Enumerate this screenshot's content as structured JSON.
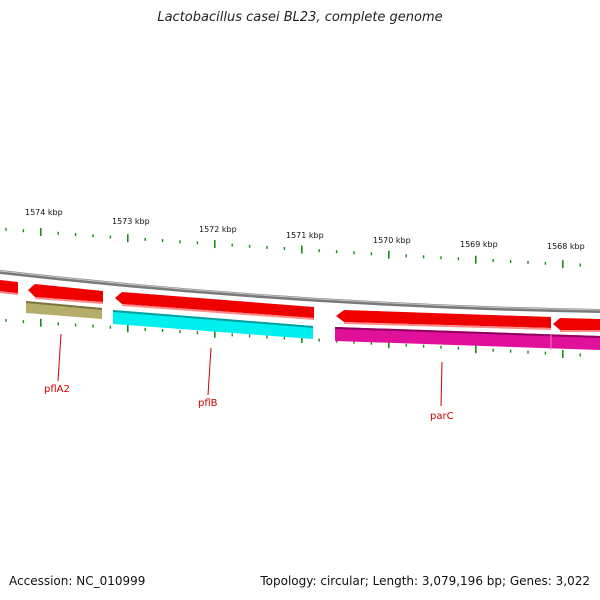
{
  "title": "Lactobacillus casei BL23, complete genome",
  "footer": {
    "accession": "Accession: NC_010999",
    "summary": "Topology: circular; Length: 3,079,196 bp; Genes: 3,022"
  },
  "colors": {
    "backbone": "#808080",
    "forward_gene": "#ee0000",
    "pfla2": "#b5ad6a",
    "pflb": "#00f0f0",
    "parc": "#e0109a",
    "ticks": "#1a8a1a",
    "label": "#cc0000"
  },
  "scale_labels": [
    "1574 kbp",
    "1573 kbp",
    "1572 kbp",
    "1571 kbp",
    "1570 kbp",
    "1569 kbp",
    "1568 kbp"
  ],
  "gene_labels": {
    "pflA2": "pflA2",
    "pflB": "pflB",
    "parC": "parC"
  }
}
